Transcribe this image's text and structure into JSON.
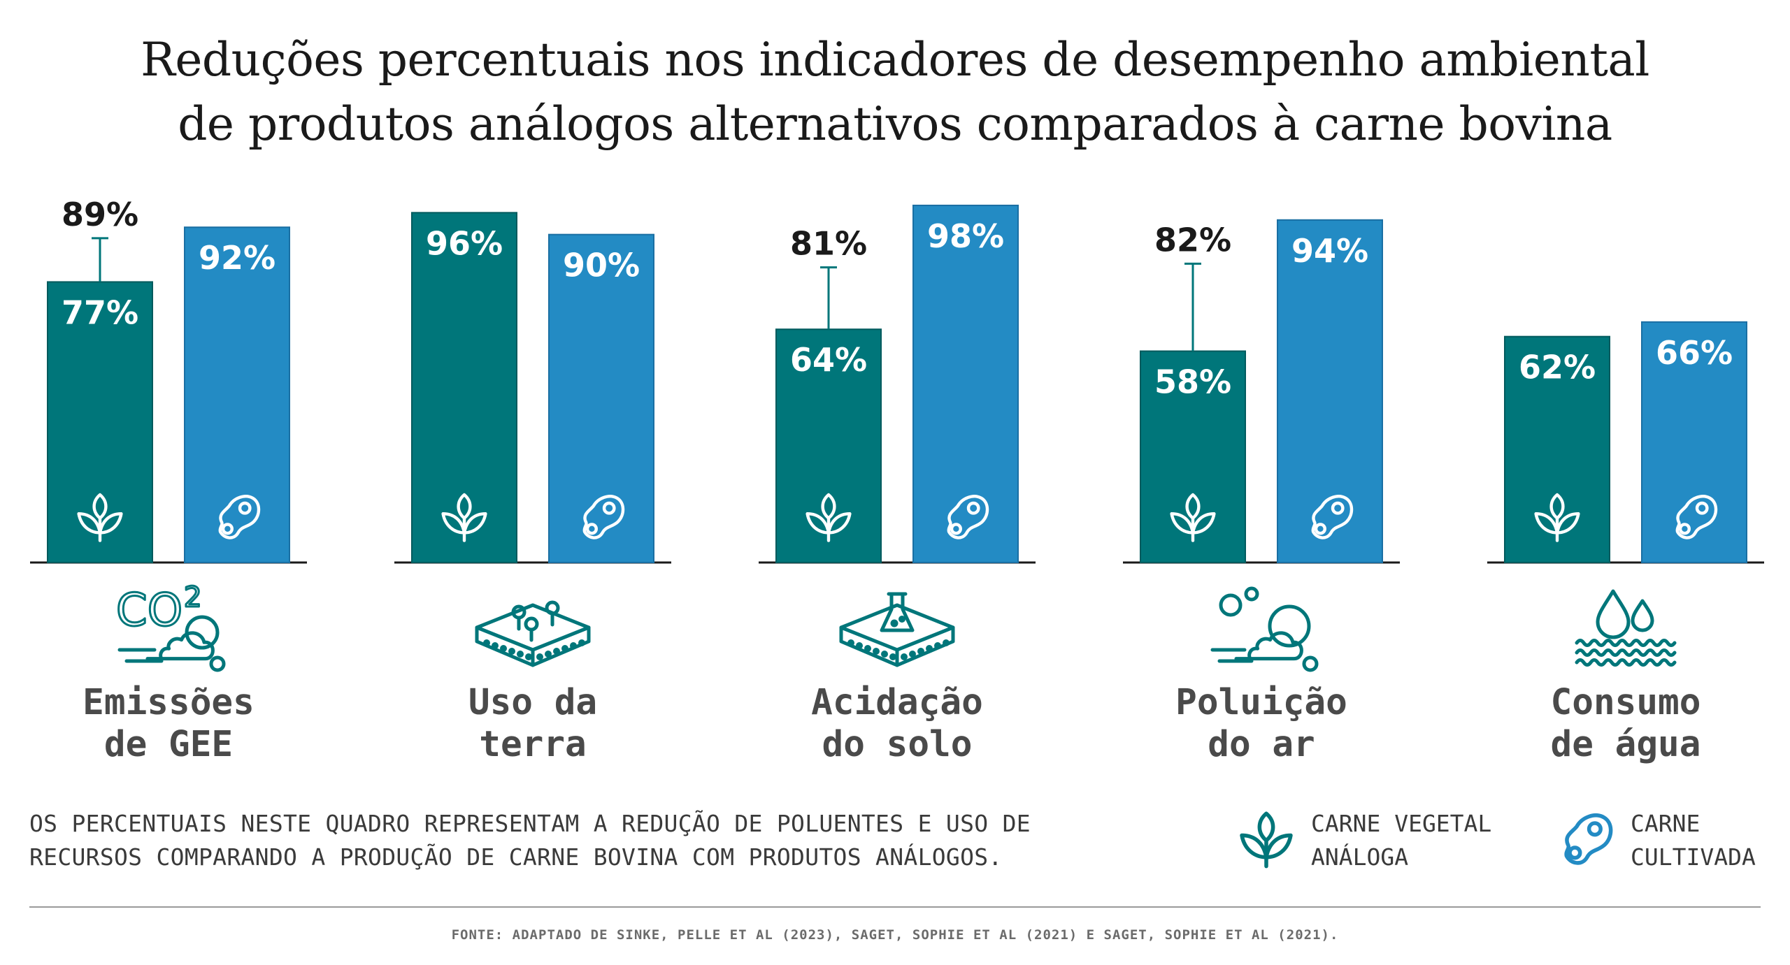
{
  "title": {
    "line1": "Reduções percentuais nos indicadores de desempenho ambiental",
    "line2": "de produtos análogos alternativos comparados à carne bovina"
  },
  "chart_data": {
    "type": "bar",
    "categories": [
      "Emissões de GEE",
      "Uso da terra",
      "Acidação do solo",
      "Poluição do ar",
      "Consumo de água"
    ],
    "category_lines": [
      [
        "Emissões",
        "de GEE"
      ],
      [
        "Uso da",
        "terra"
      ],
      [
        "Acidação",
        "do solo"
      ],
      [
        "Poluição",
        "do ar"
      ],
      [
        "Consumo",
        "de água"
      ]
    ],
    "category_icons": [
      "co2-cloud-icon",
      "land-plot-icon",
      "soil-flask-icon",
      "air-pollution-icon",
      "water-drops-icon"
    ],
    "ylim": [
      0,
      100
    ],
    "series": [
      {
        "name": "CARNE VEGETAL ANÁLOGA",
        "color": "#00767a",
        "icon": "plant-sprout-icon",
        "values": [
          77,
          96,
          64,
          58,
          62
        ],
        "labels": [
          "77%",
          "96%",
          "64%",
          "58%",
          "62%"
        ],
        "error_upper": [
          89,
          null,
          81,
          82,
          null
        ],
        "error_upper_labels": [
          "89%",
          null,
          "81%",
          "82%",
          null
        ]
      },
      {
        "name": "CARNE CULTIVADA",
        "color": "#238bc4",
        "icon": "cultivated-meat-icon",
        "values": [
          92,
          90,
          98,
          94,
          66
        ],
        "labels": [
          "92%",
          "90%",
          "98%",
          "94%",
          "66%"
        ]
      }
    ]
  },
  "note": {
    "line1": "OS PERCENTUAIS NESTE QUADRO REPRESENTAM A REDUÇÃO DE POLUENTES E USO DE",
    "line2": "RECURSOS COMPARANDO A PRODUÇÃO DE CARNE BOVINA COM PRODUTOS ANÁLOGOS."
  },
  "legend": [
    {
      "label": "CARNE VEGETAL\nANÁLOGA",
      "icon": "plant-sprout-icon",
      "color": "#00767a"
    },
    {
      "label": "CARNE\nCULTIVADA",
      "icon": "cultivated-meat-icon",
      "color": "#238bc4"
    }
  ],
  "source": "FONTE: ADAPTADO DE  SINKE, PELLE ET AL (2023), SAGET, SOPHIE ET AL (2021) E SAGET, SOPHIE ET AL (2021)."
}
